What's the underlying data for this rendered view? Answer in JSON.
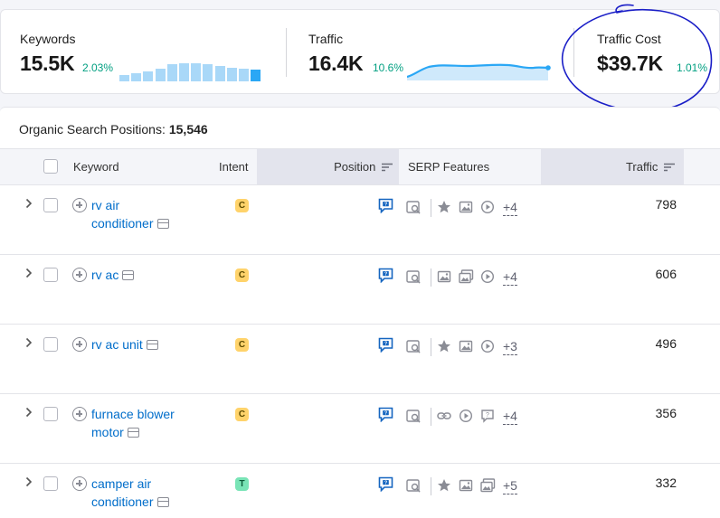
{
  "summary": {
    "keywords": {
      "label": "Keywords",
      "value": "15.5K",
      "delta": "2.03%",
      "bar_levels": [
        0.22,
        0.28,
        0.34,
        0.44,
        0.58,
        0.62,
        0.64,
        0.6,
        0.52,
        0.48,
        0.44,
        0.42
      ]
    },
    "traffic": {
      "label": "Traffic",
      "value": "16.4K",
      "delta": "10.6%"
    },
    "traffic_cost": {
      "label": "Traffic Cost",
      "value": "$39.7K",
      "delta": "1.01%"
    }
  },
  "panel": {
    "title": "Organic Search Positions:",
    "count": "15,546"
  },
  "table": {
    "headers": {
      "keyword": "Keyword",
      "intent": "Intent",
      "position": "Position",
      "serp": "SERP Features",
      "traffic": "Traffic"
    },
    "rows": [
      {
        "keyword_line1": "rv air",
        "keyword_line2": "conditioner",
        "intent": "C",
        "intent_type": "commercial",
        "serp_icons": [
          "star-icon",
          "image-icon",
          "video-icon"
        ],
        "more": "+4",
        "traffic": "798"
      },
      {
        "keyword_line1": "rv ac",
        "keyword_line2": "",
        "intent": "C",
        "intent_type": "commercial",
        "serp_icons": [
          "image-icon",
          "image-pack-icon",
          "video-icon"
        ],
        "more": "+4",
        "traffic": "606"
      },
      {
        "keyword_line1": "rv ac unit",
        "keyword_line2": "",
        "intent": "C",
        "intent_type": "commercial",
        "serp_icons": [
          "star-icon",
          "image-icon",
          "video-icon"
        ],
        "more": "+3",
        "traffic": "496"
      },
      {
        "keyword_line1": "furnace blower",
        "keyword_line2": "motor",
        "intent": "C",
        "intent_type": "commercial",
        "serp_icons": [
          "link-icon",
          "video-icon",
          "faq-icon"
        ],
        "more": "+4",
        "traffic": "356"
      },
      {
        "keyword_line1": "camper air",
        "keyword_line2": "conditioner",
        "intent": "T",
        "intent_type": "transactional",
        "serp_icons": [
          "star-icon",
          "image-icon",
          "image-pack-icon"
        ],
        "more": "+5",
        "traffic": "332"
      }
    ]
  },
  "colors": {
    "link": "#006dca",
    "positive": "#009f81",
    "accent_bar": "#2aa7f5",
    "annotation": "#1a1ec7"
  }
}
